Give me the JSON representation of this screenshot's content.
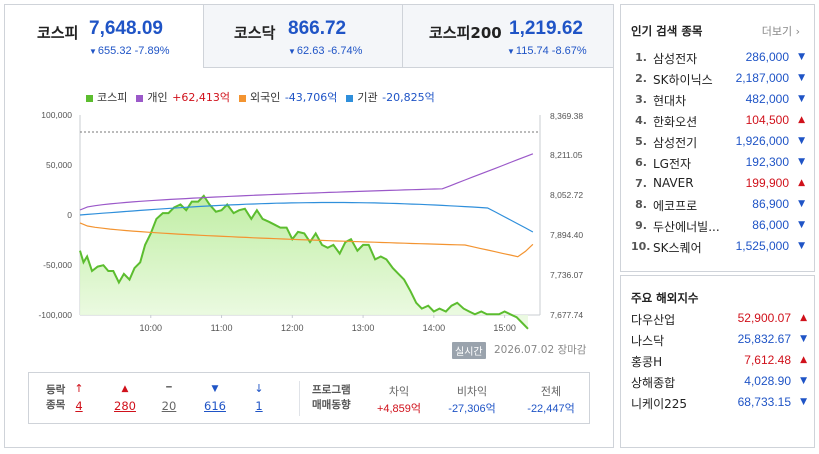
{
  "tabs": [
    {
      "name": "코스피",
      "value": "7,648.09",
      "change": "655.32 -7.89%",
      "active": true
    },
    {
      "name": "코스닥",
      "value": "866.72",
      "change": "62.63 -6.74%",
      "active": false
    },
    {
      "name": "코스피200",
      "value": "1,219.62",
      "change": "115.74 -8.67%",
      "active": false
    }
  ],
  "legend": [
    {
      "label": "코스피",
      "value": "",
      "color": "#5cbd2f"
    },
    {
      "label": "개인",
      "value": "+62,413억",
      "color": "#9b59c9",
      "value_color": "#d0111b"
    },
    {
      "label": "외국인",
      "value": "-43,706억",
      "color": "#f39431",
      "value_color": "#1f54c6"
    },
    {
      "label": "기관",
      "value": "-20,825억",
      "color": "#2f8fdb",
      "value_color": "#1f54c6"
    }
  ],
  "chart_data": {
    "type": "line",
    "x_ticks": [
      "10:00",
      "11:00",
      "12:00",
      "13:00",
      "14:00",
      "15:00"
    ],
    "y_left_ticks": [
      "100,000",
      "50,000",
      "0",
      "-50,000",
      "-100,000"
    ],
    "y_right_ticks": [
      "8,369.38",
      "8,211.05",
      "8,052.72",
      "7,894.40",
      "7,736.07",
      "7,677.74"
    ],
    "ylim_left": [
      -100000,
      100000
    ],
    "series": [
      {
        "name": "코스피",
        "color": "#5cbd2f",
        "axis": "right",
        "x": [
          9.0,
          9.05,
          9.1,
          9.17,
          9.25,
          9.33,
          9.4,
          9.47,
          9.55,
          9.62,
          9.7,
          9.77,
          9.85,
          9.92,
          10.0,
          10.08,
          10.17,
          10.25,
          10.33,
          10.42,
          10.5,
          10.58,
          10.67,
          10.75,
          10.83,
          10.92,
          11.0,
          11.08,
          11.17,
          11.25,
          11.33,
          11.42,
          11.5,
          11.58,
          11.67,
          11.75,
          11.83,
          11.92,
          12.0,
          12.08,
          12.17,
          12.25,
          12.33,
          12.42,
          12.5,
          12.58,
          12.67,
          12.75,
          12.83,
          12.92,
          13.0,
          13.08,
          13.17,
          13.25,
          13.33,
          13.42,
          13.5,
          13.58,
          13.67,
          13.75,
          13.83,
          13.92,
          14.0,
          14.08,
          14.17,
          14.25,
          14.33,
          14.42,
          14.5,
          14.58,
          14.67,
          14.75,
          14.83,
          14.92,
          15.0,
          15.08,
          15.17,
          15.25,
          15.33
        ],
        "values": [
          7900,
          7860,
          7880,
          7830,
          7845,
          7850,
          7830,
          7830,
          7790,
          7820,
          7800,
          7840,
          7860,
          7920,
          7960,
          8010,
          8030,
          8030,
          8050,
          8060,
          8040,
          8070,
          8070,
          8090,
          8060,
          8035,
          8040,
          8060,
          8030,
          8040,
          8045,
          8010,
          8040,
          8010,
          8000,
          7990,
          7980,
          7980,
          7940,
          7965,
          7960,
          7930,
          7960,
          7920,
          7910,
          7920,
          7890,
          7930,
          7940,
          7900,
          7920,
          7920,
          7870,
          7880,
          7870,
          7840,
          7820,
          7800,
          7760,
          7720,
          7700,
          7710,
          7690,
          7700,
          7690,
          7710,
          7720,
          7700,
          7690,
          7680,
          7690,
          7680,
          7680,
          7680,
          7690,
          7680,
          7670,
          7650,
          7630
        ],
        "display_overrides": {}
      },
      {
        "name": "개인",
        "color": "#9b59c9",
        "axis": "left",
        "final": 62413
      },
      {
        "name": "외국인",
        "color": "#f39431",
        "axis": "left",
        "final": -43706
      },
      {
        "name": "기관",
        "color": "#2f8fdb",
        "axis": "left",
        "final": -20825
      }
    ]
  },
  "time_badge": "실시간",
  "date_text": "2026.07.02",
  "status_text": "장마감",
  "breadth": {
    "label_line1": "등락",
    "label_line2": "종목",
    "items": [
      {
        "icon": "upper-limit",
        "value": "4",
        "color": "#d0111b"
      },
      {
        "icon": "up",
        "value": "280",
        "color": "#d0111b"
      },
      {
        "icon": "flat",
        "value": "20",
        "color": "#666666"
      },
      {
        "icon": "down",
        "value": "616",
        "color": "#1f54c6"
      },
      {
        "icon": "lower-limit",
        "value": "1",
        "color": "#1f54c6"
      }
    ]
  },
  "program": {
    "label_line1": "프로그램",
    "label_line2": "매매동향",
    "cols": [
      {
        "header": "차익",
        "value": "+4,859억",
        "color": "#d0111b"
      },
      {
        "header": "비차익",
        "value": "-27,306억",
        "color": "#1f54c6"
      },
      {
        "header": "전체",
        "value": "-22,447억",
        "color": "#1f54c6"
      }
    ]
  },
  "popular": {
    "title": "인기 검색 종목",
    "more": "더보기",
    "items": [
      {
        "rank": "1.",
        "name": "삼성전자",
        "price": "286,000",
        "dir": "down"
      },
      {
        "rank": "2.",
        "name": "SK하이닉스",
        "price": "2,187,000",
        "dir": "down"
      },
      {
        "rank": "3.",
        "name": "현대차",
        "price": "482,000",
        "dir": "down"
      },
      {
        "rank": "4.",
        "name": "한화오션",
        "price": "104,500",
        "dir": "up"
      },
      {
        "rank": "5.",
        "name": "삼성전기",
        "price": "1,926,000",
        "dir": "down"
      },
      {
        "rank": "6.",
        "name": "LG전자",
        "price": "192,300",
        "dir": "down"
      },
      {
        "rank": "7.",
        "name": "NAVER",
        "price": "199,900",
        "dir": "up"
      },
      {
        "rank": "8.",
        "name": "에코프로",
        "price": "86,900",
        "dir": "down"
      },
      {
        "rank": "9.",
        "name": "두산에너빌...",
        "price": "86,000",
        "dir": "down"
      },
      {
        "rank": "10.",
        "name": "SK스퀘어",
        "price": "1,525,000",
        "dir": "down"
      }
    ]
  },
  "world": {
    "title": "주요 해외지수",
    "items": [
      {
        "name": "다우산업",
        "value": "52,900.07",
        "dir": "up"
      },
      {
        "name": "나스닥",
        "value": "25,832.67",
        "dir": "down"
      },
      {
        "name": "홍콩H",
        "value": "7,612.48",
        "dir": "up"
      },
      {
        "name": "상해종합",
        "value": "4,028.90",
        "dir": "down"
      },
      {
        "name": "니케이225",
        "value": "68,733.15",
        "dir": "down"
      }
    ]
  }
}
